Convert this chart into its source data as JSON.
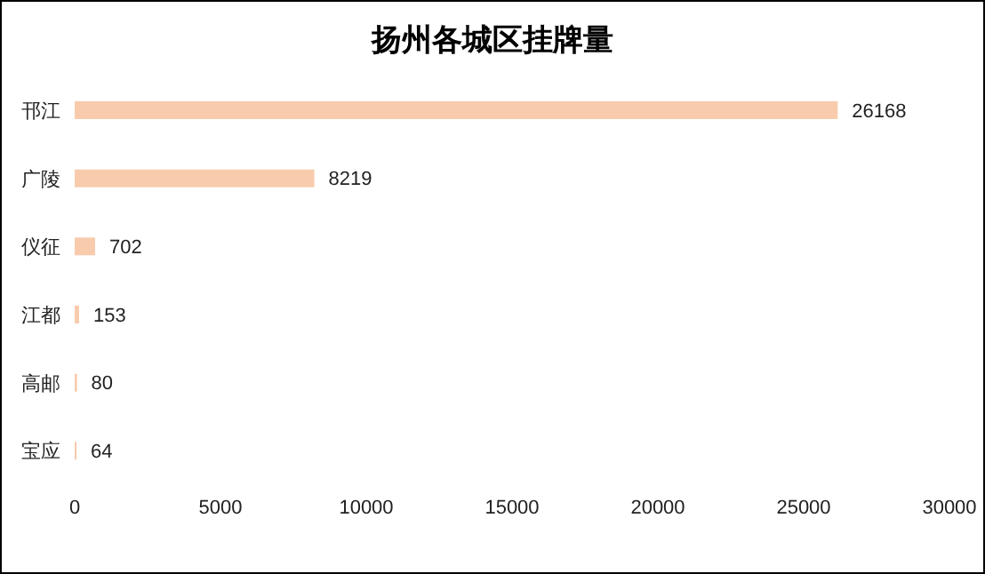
{
  "chart_data": {
    "type": "bar",
    "orientation": "horizontal",
    "title": "扬州各城区挂牌量",
    "categories": [
      "邗江",
      "广陵",
      "仪征",
      "江都",
      "高邮",
      "宝应"
    ],
    "values": [
      26168,
      8219,
      702,
      153,
      80,
      64
    ],
    "color": "#f8cbad",
    "xlim": [
      0,
      30000
    ],
    "xticks": [
      0,
      5000,
      10000,
      15000,
      20000,
      25000,
      30000
    ],
    "data_labels": true,
    "grid": false,
    "legend": false
  }
}
